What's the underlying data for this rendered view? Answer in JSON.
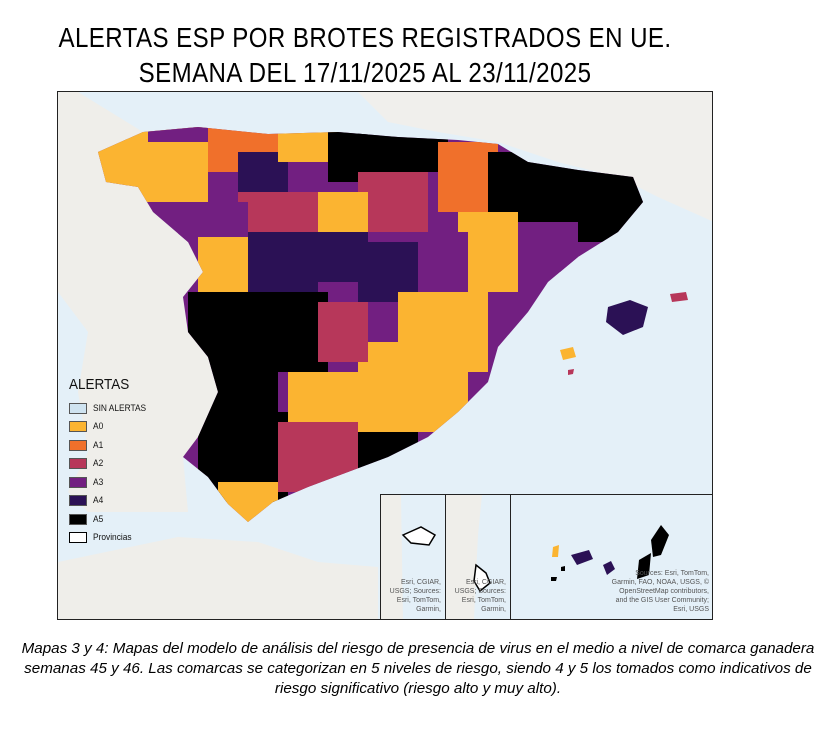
{
  "title_line1": "ALERTAS ESP POR BROTES REGISTRADOS EN UE.",
  "title_line2": "SEMANA DEL 17/11/2025 AL 23/11/2025",
  "legend": {
    "title": "ALERTAS",
    "items": [
      {
        "label": "SIN ALERTAS",
        "color": "#cfe3f0"
      },
      {
        "label": "A0",
        "color": "#fbb431"
      },
      {
        "label": "A1",
        "color": "#f0702b"
      },
      {
        "label": "A2",
        "color": "#b7375a"
      },
      {
        "label": "A3",
        "color": "#721f81"
      },
      {
        "label": "A4",
        "color": "#2b1155"
      },
      {
        "label": "A5",
        "color": "#000000"
      },
      {
        "label": "Provincias",
        "color": "#ffffff"
      }
    ]
  },
  "insets": {
    "ceuta_attribution": "Esri, CGIAR, USGS; Sources: Esri, TomTom, Garmin,",
    "melilla_attribution": "Esri, CGIAR, USGS; Sources: Esri, TomTom, Garmin,",
    "canarias_attribution": "Sources: Esri, TomTom, Garmin, FAO, NOAA, USGS, © OpenStreetMap contributors, and the GIS User Community; Esri, USGS"
  },
  "caption": "Mapas 3 y 4: Mapas del modelo de análisis del riesgo de presencia de virus en el medio a nivel de comarca ganadera semanas 45 y 46. Las comarcas se categorizan en 5 niveles de riesgo, siendo 4 y 5 los tomados como indicativos de riesgo significativo (riesgo alto y muy alto)."
}
